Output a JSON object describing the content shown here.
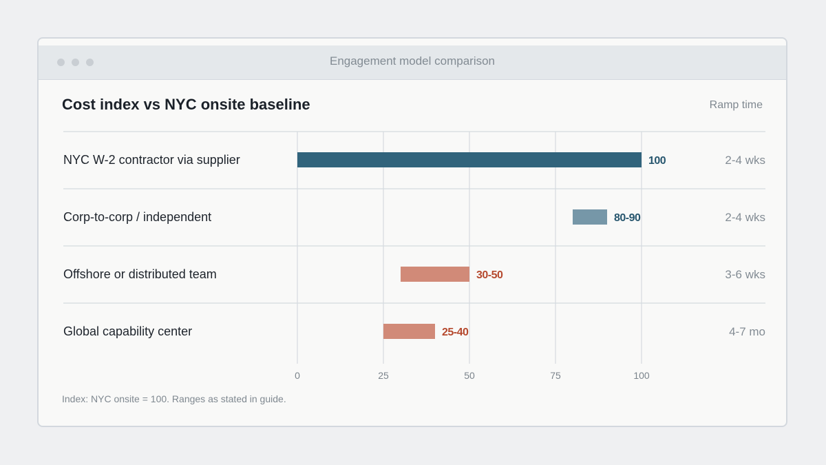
{
  "window": {
    "title": "Engagement model comparison"
  },
  "colors": {
    "dark_teal": "#31647c",
    "light_teal": "#7697a8",
    "terracotta": "#d18a78",
    "label_teal": "#27566e",
    "label_orange": "#b5492e"
  },
  "chart_data": {
    "type": "bar",
    "title": "Cost index vs NYC onsite baseline",
    "right_column_header": "Ramp time",
    "xlim": [
      0,
      100
    ],
    "xticks": [
      0,
      25,
      50,
      75,
      100
    ],
    "grid": true,
    "rows": [
      {
        "category": "NYC W-2 contractor via supplier",
        "low": 0,
        "high": 100,
        "label": "100",
        "ramp": "2-4 wks",
        "color": "#31647c",
        "label_color": "#27566e"
      },
      {
        "category": "Corp-to-corp / independent",
        "low": 80,
        "high": 90,
        "label": "80-90",
        "ramp": "2-4 wks",
        "color": "#7697a8",
        "label_color": "#27566e"
      },
      {
        "category": "Offshore or distributed team",
        "low": 30,
        "high": 50,
        "label": "30-50",
        "ramp": "3-6 wks",
        "color": "#d18a78",
        "label_color": "#b5492e"
      },
      {
        "category": "Global capability center",
        "low": 25,
        "high": 40,
        "label": "25-40",
        "ramp": "4-7 mo",
        "color": "#d18a78",
        "label_color": "#b5492e"
      }
    ],
    "footnote": "Index: NYC onsite = 100. Ranges as stated in guide."
  }
}
